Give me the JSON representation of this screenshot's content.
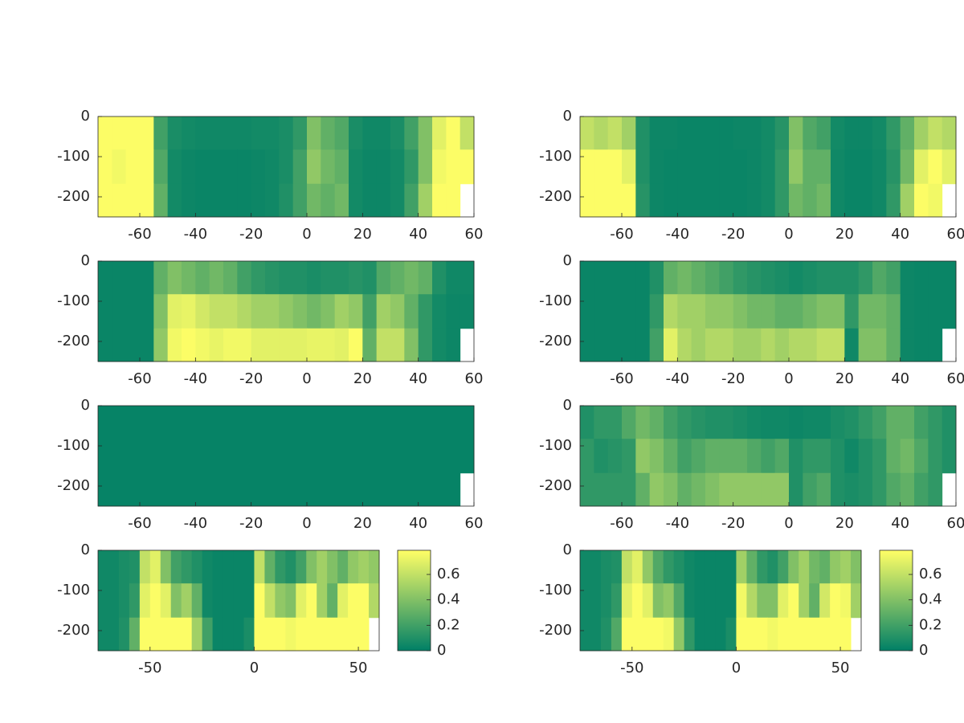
{
  "chart_data": [
    {
      "type": "heatmap",
      "colormap": [
        "#008066",
        "#ffff66"
      ],
      "clim": [
        0,
        0.79
      ],
      "xlim": [
        -75,
        60
      ],
      "ylim": [
        -250,
        0
      ],
      "xticks": [
        -60,
        -40,
        -20,
        0,
        20,
        40,
        60
      ],
      "yticks": [
        0,
        -100,
        -200
      ],
      "x": [
        -72.5,
        -67.5,
        -62.5,
        -57.5,
        -52.5,
        -47.5,
        -42.5,
        -37.5,
        -32.5,
        -27.5,
        -22.5,
        -17.5,
        -12.5,
        -7.5,
        -2.5,
        2.5,
        7.5,
        12.5,
        17.5,
        22.5,
        27.5,
        32.5,
        37.5,
        42.5,
        47.5,
        52.5,
        57.5
      ],
      "y": [
        -40,
        -125,
        -210
      ],
      "z": [
        [
          0.78,
          0.78,
          0.78,
          0.78,
          0.2,
          0.08,
          0.06,
          0.05,
          0.05,
          0.05,
          0.05,
          0.06,
          0.06,
          0.08,
          0.15,
          0.4,
          0.3,
          0.25,
          0.08,
          0.05,
          0.05,
          0.08,
          0.2,
          0.4,
          0.7,
          0.78,
          0.6
        ],
        [
          0.78,
          0.75,
          0.78,
          0.78,
          0.25,
          0.06,
          0.04,
          0.03,
          0.03,
          0.03,
          0.03,
          0.04,
          0.05,
          0.08,
          0.2,
          0.45,
          0.35,
          0.3,
          0.06,
          0.04,
          0.04,
          0.06,
          0.15,
          0.4,
          0.75,
          0.78,
          0.78
        ],
        [
          0.78,
          0.78,
          0.78,
          0.78,
          0.3,
          0.06,
          0.04,
          0.03,
          0.03,
          0.03,
          0.03,
          0.04,
          0.05,
          0.1,
          0.2,
          0.35,
          0.3,
          0.35,
          0.06,
          0.04,
          0.04,
          0.06,
          0.2,
          0.5,
          0.78,
          0.78,
          null
        ]
      ]
    },
    {
      "type": "heatmap",
      "colormap": [
        "#008066",
        "#ffff66"
      ],
      "clim": [
        0,
        0.79
      ],
      "xlim": [
        -75,
        60
      ],
      "ylim": [
        -250,
        0
      ],
      "xticks": [
        -60,
        -40,
        -20,
        0,
        20,
        40,
        60
      ],
      "yticks": [
        0,
        -100,
        -200
      ],
      "x": [
        -72.5,
        -67.5,
        -62.5,
        -57.5,
        -52.5,
        -47.5,
        -42.5,
        -37.5,
        -32.5,
        -27.5,
        -22.5,
        -17.5,
        -12.5,
        -7.5,
        -2.5,
        2.5,
        7.5,
        12.5,
        17.5,
        22.5,
        27.5,
        32.5,
        37.5,
        42.5,
        47.5,
        52.5,
        57.5
      ],
      "y": [
        -40,
        -125,
        -210
      ],
      "z": [
        [
          0.6,
          0.55,
          0.6,
          0.5,
          0.1,
          0.04,
          0.04,
          0.03,
          0.03,
          0.03,
          0.03,
          0.04,
          0.04,
          0.06,
          0.12,
          0.4,
          0.25,
          0.2,
          0.06,
          0.04,
          0.04,
          0.06,
          0.15,
          0.3,
          0.5,
          0.6,
          0.55
        ],
        [
          0.78,
          0.78,
          0.78,
          0.7,
          0.1,
          0.04,
          0.03,
          0.03,
          0.03,
          0.03,
          0.03,
          0.03,
          0.04,
          0.06,
          0.15,
          0.45,
          0.3,
          0.3,
          0.05,
          0.03,
          0.03,
          0.05,
          0.12,
          0.35,
          0.7,
          0.78,
          0.7
        ],
        [
          0.78,
          0.78,
          0.78,
          0.78,
          0.12,
          0.04,
          0.03,
          0.03,
          0.03,
          0.03,
          0.03,
          0.03,
          0.04,
          0.06,
          0.15,
          0.35,
          0.3,
          0.35,
          0.05,
          0.03,
          0.03,
          0.05,
          0.15,
          0.5,
          0.78,
          0.75,
          null
        ]
      ]
    },
    {
      "type": "heatmap",
      "colormap": [
        "#008066",
        "#ffff66"
      ],
      "clim": [
        0,
        0.79
      ],
      "xlim": [
        -75,
        60
      ],
      "ylim": [
        -250,
        0
      ],
      "xticks": [
        -60,
        -40,
        -20,
        0,
        20,
        40,
        60
      ],
      "yticks": [
        0,
        -100,
        -200
      ],
      "x": [
        -72.5,
        -67.5,
        -62.5,
        -57.5,
        -52.5,
        -47.5,
        -42.5,
        -37.5,
        -32.5,
        -27.5,
        -22.5,
        -17.5,
        -12.5,
        -7.5,
        -2.5,
        2.5,
        7.5,
        12.5,
        17.5,
        22.5,
        27.5,
        32.5,
        37.5,
        42.5,
        47.5,
        52.5,
        57.5
      ],
      "y": [
        -40,
        -125,
        -210
      ],
      "z": [
        [
          0.03,
          0.03,
          0.03,
          0.03,
          0.3,
          0.4,
          0.35,
          0.3,
          0.35,
          0.3,
          0.2,
          0.15,
          0.12,
          0.1,
          0.1,
          0.08,
          0.1,
          0.1,
          0.12,
          0.1,
          0.25,
          0.3,
          0.35,
          0.3,
          0.1,
          0.05,
          0.05
        ],
        [
          0.03,
          0.03,
          0.03,
          0.03,
          0.4,
          0.7,
          0.72,
          0.65,
          0.6,
          0.6,
          0.55,
          0.5,
          0.5,
          0.45,
          0.4,
          0.35,
          0.4,
          0.5,
          0.45,
          0.2,
          0.5,
          0.45,
          0.3,
          0.15,
          0.06,
          0.04,
          0.04
        ],
        [
          0.03,
          0.03,
          0.03,
          0.03,
          0.45,
          0.75,
          0.78,
          0.75,
          0.72,
          0.75,
          0.75,
          0.7,
          0.7,
          0.7,
          0.7,
          0.72,
          0.72,
          0.7,
          0.78,
          0.3,
          0.6,
          0.6,
          0.4,
          0.15,
          0.06,
          0.04,
          null
        ]
      ]
    },
    {
      "type": "heatmap",
      "colormap": [
        "#008066",
        "#ffff66"
      ],
      "clim": [
        0,
        0.79
      ],
      "xlim": [
        -75,
        60
      ],
      "ylim": [
        -250,
        0
      ],
      "xticks": [
        -60,
        -40,
        -20,
        0,
        20,
        40,
        60
      ],
      "yticks": [
        0,
        -100,
        -200
      ],
      "x": [
        -72.5,
        -67.5,
        -62.5,
        -57.5,
        -52.5,
        -47.5,
        -42.5,
        -37.5,
        -32.5,
        -27.5,
        -22.5,
        -17.5,
        -12.5,
        -7.5,
        -2.5,
        2.5,
        7.5,
        12.5,
        17.5,
        22.5,
        27.5,
        32.5,
        37.5,
        42.5,
        47.5,
        52.5,
        57.5
      ],
      "y": [
        -40,
        -125,
        -210
      ],
      "z": [
        [
          0.03,
          0.03,
          0.03,
          0.03,
          0.03,
          0.1,
          0.3,
          0.35,
          0.3,
          0.25,
          0.2,
          0.15,
          0.12,
          0.1,
          0.08,
          0.06,
          0.08,
          0.1,
          0.1,
          0.1,
          0.15,
          0.25,
          0.2,
          0.04,
          0.03,
          0.03,
          0.03
        ],
        [
          0.03,
          0.03,
          0.03,
          0.03,
          0.03,
          0.15,
          0.55,
          0.5,
          0.5,
          0.45,
          0.45,
          0.4,
          0.35,
          0.35,
          0.3,
          0.3,
          0.35,
          0.4,
          0.4,
          0.15,
          0.35,
          0.35,
          0.3,
          0.04,
          0.03,
          0.03,
          0.03
        ],
        [
          0.03,
          0.03,
          0.03,
          0.03,
          0.03,
          0.2,
          0.7,
          0.55,
          0.5,
          0.55,
          0.55,
          0.5,
          0.5,
          0.55,
          0.5,
          0.55,
          0.55,
          0.6,
          0.6,
          0.05,
          0.4,
          0.4,
          0.3,
          0.04,
          0.03,
          0.03,
          null
        ]
      ]
    },
    {
      "type": "heatmap",
      "colormap": [
        "#008066",
        "#ffff66"
      ],
      "clim": [
        0,
        0.79
      ],
      "xlim": [
        -75,
        60
      ],
      "ylim": [
        -250,
        0
      ],
      "xticks": [
        -60,
        -40,
        -20,
        0,
        20,
        40,
        60
      ],
      "yticks": [
        0,
        -100,
        -200
      ],
      "x": [
        -72.5,
        -67.5,
        -62.5,
        -57.5,
        -52.5,
        -47.5,
        -42.5,
        -37.5,
        -32.5,
        -27.5,
        -22.5,
        -17.5,
        -12.5,
        -7.5,
        -2.5,
        2.5,
        7.5,
        12.5,
        17.5,
        22.5,
        27.5,
        32.5,
        37.5,
        42.5,
        47.5,
        52.5,
        57.5
      ],
      "y": [
        -40,
        -125,
        -210
      ],
      "z": [
        [
          0.02,
          0.02,
          0.02,
          0.02,
          0.02,
          0.02,
          0.02,
          0.02,
          0.02,
          0.02,
          0.02,
          0.02,
          0.02,
          0.02,
          0.02,
          0.02,
          0.02,
          0.02,
          0.02,
          0.02,
          0.02,
          0.02,
          0.02,
          0.02,
          0.02,
          0.02,
          0.02
        ],
        [
          0.02,
          0.02,
          0.02,
          0.02,
          0.02,
          0.02,
          0.02,
          0.02,
          0.02,
          0.02,
          0.02,
          0.02,
          0.02,
          0.02,
          0.02,
          0.02,
          0.02,
          0.02,
          0.02,
          0.02,
          0.02,
          0.02,
          0.02,
          0.02,
          0.02,
          0.02,
          0.02
        ],
        [
          0.02,
          0.02,
          0.02,
          0.02,
          0.02,
          0.02,
          0.02,
          0.02,
          0.02,
          0.02,
          0.02,
          0.02,
          0.02,
          0.02,
          0.02,
          0.02,
          0.02,
          0.02,
          0.02,
          0.02,
          0.02,
          0.02,
          0.02,
          0.02,
          0.02,
          0.02,
          null
        ]
      ]
    },
    {
      "type": "heatmap",
      "colormap": [
        "#008066",
        "#ffff66"
      ],
      "clim": [
        0,
        0.79
      ],
      "xlim": [
        -75,
        60
      ],
      "ylim": [
        -250,
        0
      ],
      "xticks": [
        -60,
        -40,
        -20,
        0,
        20,
        40,
        60
      ],
      "yticks": [
        0,
        -100,
        -200
      ],
      "x": [
        -72.5,
        -67.5,
        -62.5,
        -57.5,
        -52.5,
        -47.5,
        -42.5,
        -37.5,
        -32.5,
        -27.5,
        -22.5,
        -17.5,
        -12.5,
        -7.5,
        -2.5,
        2.5,
        7.5,
        12.5,
        17.5,
        22.5,
        27.5,
        32.5,
        37.5,
        42.5,
        47.5,
        52.5,
        57.5
      ],
      "y": [
        -40,
        -125,
        -210
      ],
      "z": [
        [
          0.1,
          0.15,
          0.15,
          0.25,
          0.35,
          0.3,
          0.2,
          0.15,
          0.12,
          0.1,
          0.1,
          0.08,
          0.06,
          0.05,
          0.05,
          0.04,
          0.05,
          0.05,
          0.08,
          0.1,
          0.15,
          0.2,
          0.3,
          0.3,
          0.2,
          0.15,
          0.1
        ],
        [
          0.15,
          0.1,
          0.12,
          0.15,
          0.45,
          0.4,
          0.3,
          0.2,
          0.25,
          0.3,
          0.3,
          0.3,
          0.25,
          0.2,
          0.25,
          0.1,
          0.15,
          0.15,
          0.1,
          0.05,
          0.1,
          0.15,
          0.3,
          0.35,
          0.25,
          0.15,
          0.1
        ],
        [
          0.15,
          0.15,
          0.15,
          0.15,
          0.3,
          0.45,
          0.4,
          0.3,
          0.35,
          0.4,
          0.45,
          0.45,
          0.45,
          0.45,
          0.45,
          0.1,
          0.2,
          0.25,
          0.1,
          0.08,
          0.1,
          0.15,
          0.25,
          0.3,
          0.2,
          0.15,
          null
        ]
      ]
    },
    {
      "type": "heatmap",
      "colormap": [
        "#008066",
        "#ffff66"
      ],
      "clim": [
        0,
        0.79
      ],
      "xlim": [
        -75,
        60
      ],
      "ylim": [
        -250,
        0
      ],
      "xticks": [
        -50,
        0,
        50
      ],
      "yticks": [
        0,
        -100,
        -200
      ],
      "colorbar_ticks": [
        0,
        0.2,
        0.4,
        0.6
      ],
      "x": [
        -72.5,
        -67.5,
        -62.5,
        -57.5,
        -52.5,
        -47.5,
        -42.5,
        -37.5,
        -32.5,
        -27.5,
        -22.5,
        -17.5,
        -12.5,
        -7.5,
        -2.5,
        2.5,
        7.5,
        12.5,
        17.5,
        22.5,
        27.5,
        32.5,
        37.5,
        42.5,
        47.5,
        52.5,
        57.5
      ],
      "y": [
        -40,
        -125,
        -210
      ],
      "z": [
        [
          0.05,
          0.05,
          0.08,
          0.1,
          0.6,
          0.7,
          0.4,
          0.2,
          0.15,
          0.1,
          0.05,
          0.03,
          0.03,
          0.03,
          0.03,
          0.6,
          0.3,
          0.15,
          0.1,
          0.2,
          0.4,
          0.5,
          0.4,
          0.3,
          0.45,
          0.5,
          0.45
        ],
        [
          0.05,
          0.05,
          0.08,
          0.15,
          0.7,
          0.78,
          0.7,
          0.4,
          0.5,
          0.3,
          0.05,
          0.03,
          0.03,
          0.03,
          0.03,
          0.78,
          0.6,
          0.45,
          0.4,
          0.7,
          0.78,
          0.5,
          0.3,
          0.7,
          0.78,
          0.78,
          0.55
        ],
        [
          0.05,
          0.05,
          0.1,
          0.3,
          0.78,
          0.78,
          0.78,
          0.78,
          0.78,
          0.5,
          0.2,
          0.03,
          0.03,
          0.03,
          0.08,
          0.78,
          0.78,
          0.78,
          0.75,
          0.78,
          0.78,
          0.78,
          0.78,
          0.78,
          0.78,
          0.78,
          null
        ]
      ]
    },
    {
      "type": "heatmap",
      "colormap": [
        "#008066",
        "#ffff66"
      ],
      "clim": [
        0,
        0.79
      ],
      "xlim": [
        -75,
        60
      ],
      "ylim": [
        -250,
        0
      ],
      "xticks": [
        -50,
        0,
        50
      ],
      "yticks": [
        0,
        -100,
        -200
      ],
      "colorbar_ticks": [
        0,
        0.2,
        0.4,
        0.6
      ],
      "x": [
        -72.5,
        -67.5,
        -62.5,
        -57.5,
        -52.5,
        -47.5,
        -42.5,
        -37.5,
        -32.5,
        -27.5,
        -22.5,
        -17.5,
        -12.5,
        -7.5,
        -2.5,
        2.5,
        7.5,
        12.5,
        17.5,
        22.5,
        27.5,
        32.5,
        37.5,
        42.5,
        47.5,
        52.5,
        57.5
      ],
      "y": [
        -40,
        -125,
        -210
      ],
      "z": [
        [
          0.05,
          0.05,
          0.08,
          0.1,
          0.6,
          0.7,
          0.45,
          0.25,
          0.15,
          0.1,
          0.05,
          0.03,
          0.03,
          0.03,
          0.03,
          0.5,
          0.3,
          0.15,
          0.1,
          0.2,
          0.4,
          0.5,
          0.35,
          0.3,
          0.45,
          0.5,
          0.4
        ],
        [
          0.05,
          0.05,
          0.08,
          0.15,
          0.7,
          0.78,
          0.7,
          0.4,
          0.45,
          0.25,
          0.05,
          0.03,
          0.03,
          0.03,
          0.03,
          0.75,
          0.55,
          0.4,
          0.4,
          0.7,
          0.78,
          0.5,
          0.3,
          0.65,
          0.78,
          0.75,
          0.5
        ],
        [
          0.05,
          0.05,
          0.1,
          0.25,
          0.78,
          0.78,
          0.78,
          0.78,
          0.75,
          0.45,
          0.15,
          0.03,
          0.03,
          0.03,
          0.08,
          0.78,
          0.78,
          0.78,
          0.75,
          0.78,
          0.78,
          0.78,
          0.78,
          0.78,
          0.78,
          0.78,
          null
        ]
      ]
    }
  ]
}
